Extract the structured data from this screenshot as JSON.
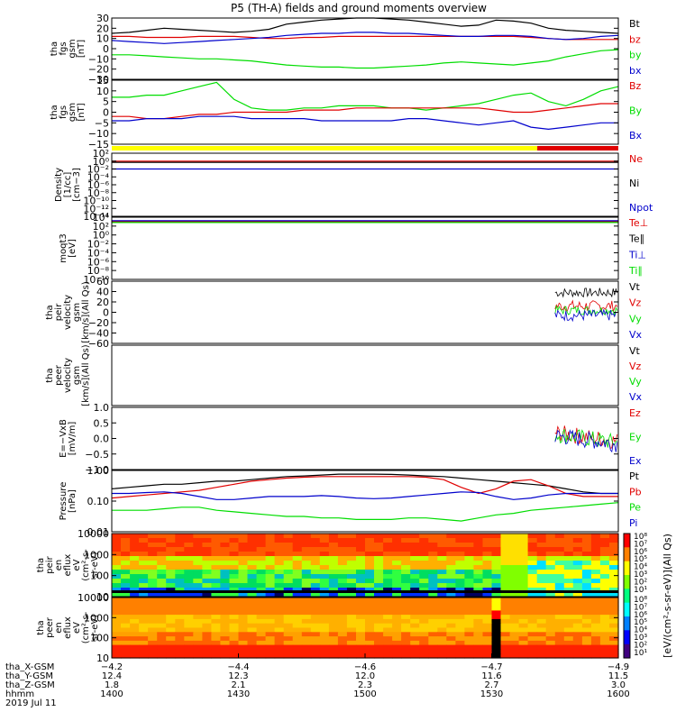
{
  "title": "P5 (TH-A) fields and ground moments overview",
  "colors": {
    "black": "#000000",
    "red": "#e00000",
    "green": "#00dd00",
    "blue": "#0000cc",
    "yellow": "#ffff00"
  },
  "panels": [
    {
      "id": "fgs_gsm",
      "ylabel": [
        "tha",
        "fgs",
        "gsm",
        "[nT]"
      ],
      "ticks": [
        "30",
        "20",
        "10",
        "0",
        "−10",
        "−20",
        "−30"
      ],
      "ymin": -30,
      "ymax": 30,
      "legend": [
        {
          "t": "Bt",
          "c": "black"
        },
        {
          "t": "bz",
          "c": "red"
        },
        {
          "t": "by",
          "c": "green"
        },
        {
          "t": "bx",
          "c": "blue"
        }
      ],
      "series": [
        {
          "c": "black",
          "v": [
            15,
            16,
            18,
            20,
            19,
            18,
            17,
            16,
            17,
            19,
            24,
            26,
            28,
            29,
            30,
            30,
            29,
            28,
            26,
            24,
            22,
            23,
            28,
            27,
            25,
            20,
            18,
            17,
            16,
            15
          ]
        },
        {
          "c": "red",
          "v": [
            12,
            12,
            11,
            11,
            11,
            12,
            12,
            12,
            11,
            10,
            10,
            11,
            11,
            12,
            12,
            12,
            12,
            12,
            12,
            12,
            12,
            12,
            12,
            12,
            11,
            10,
            9,
            9,
            9,
            9
          ]
        },
        {
          "c": "green",
          "v": [
            -6,
            -6,
            -7,
            -8,
            -9,
            -10,
            -10,
            -11,
            -12,
            -14,
            -16,
            -17,
            -18,
            -18,
            -19,
            -19,
            -18,
            -17,
            -16,
            -14,
            -13,
            -14,
            -15,
            -16,
            -14,
            -12,
            -8,
            -5,
            -2,
            -1
          ]
        },
        {
          "c": "blue",
          "v": [
            8,
            7,
            6,
            5,
            6,
            7,
            8,
            9,
            10,
            11,
            13,
            14,
            15,
            15,
            16,
            16,
            15,
            15,
            14,
            13,
            12,
            12,
            13,
            13,
            12,
            10,
            9,
            10,
            12,
            13
          ]
        }
      ]
    },
    {
      "id": "fgs_gse",
      "ylabel": [
        "tha",
        "fgs",
        "gsm",
        "[nT]"
      ],
      "ticks": [
        "15",
        "10",
        "5",
        "0",
        "−5",
        "−10",
        "−15"
      ],
      "ymin": -15,
      "ymax": 15,
      "legend": [
        {
          "t": "Bz",
          "c": "red"
        },
        {
          "t": "By",
          "c": "green"
        },
        {
          "t": "Bx",
          "c": "blue"
        }
      ],
      "series": [
        {
          "c": "green",
          "v": [
            7,
            7,
            8,
            8,
            10,
            12,
            14,
            6,
            2,
            1,
            1,
            2,
            2,
            3,
            3,
            3,
            2,
            2,
            1,
            2,
            3,
            4,
            6,
            8,
            9,
            5,
            3,
            6,
            10,
            12
          ]
        },
        {
          "c": "red",
          "v": [
            -2,
            -2,
            -3,
            -3,
            -2,
            -1,
            -1,
            0,
            0,
            0,
            0,
            1,
            1,
            1,
            2,
            2,
            2,
            2,
            2,
            2,
            2,
            2,
            1,
            0,
            0,
            1,
            2,
            3,
            4,
            4
          ]
        },
        {
          "c": "blue",
          "v": [
            -4,
            -4,
            -3,
            -3,
            -3,
            -2,
            -2,
            -2,
            -3,
            -3,
            -3,
            -3,
            -4,
            -4,
            -4,
            -4,
            -4,
            -3,
            -3,
            -4,
            -5,
            -6,
            -5,
            -4,
            -7,
            -8,
            -7,
            -6,
            -5,
            -5
          ]
        }
      ]
    },
    {
      "id": "density",
      "ylabel": [
        "Density",
        "[1/cc]",
        "[cm−3]"
      ],
      "ticks": [
        "10²",
        "10⁰",
        "10⁻²",
        "10⁻⁴",
        "10⁻⁶",
        "10⁻⁸",
        "10⁻¹⁰",
        "10⁻¹²",
        "10⁻¹⁴"
      ],
      "ymin": -14,
      "ymax": 2,
      "legend": [
        {
          "t": "Ne",
          "c": "red"
        },
        {
          "t": "Ni",
          "c": "black"
        },
        {
          "t": "Npot",
          "c": "blue"
        }
      ],
      "series": [
        {
          "c": "red",
          "v": [
            0,
            0,
            0,
            0,
            0,
            0,
            0,
            0,
            0,
            0,
            0,
            0,
            0,
            0,
            0,
            0,
            0,
            0,
            0,
            0,
            0,
            0,
            0,
            0,
            0,
            0,
            0,
            0,
            0,
            0
          ]
        },
        {
          "c": "black",
          "v": [
            -0.3,
            -0.3,
            -0.3,
            -0.3,
            -0.3,
            -0.3,
            -0.3,
            -0.3,
            -0.3,
            -0.3,
            -0.3,
            -0.3,
            -0.3,
            -0.3,
            -0.3,
            -0.3,
            -0.3,
            -0.3,
            -0.3,
            -0.3,
            -0.3,
            -0.3,
            -0.3,
            -0.3,
            -0.3,
            -0.3,
            -0.3,
            -0.3,
            -0.3,
            -0.3
          ]
        },
        {
          "c": "blue",
          "v": [
            -2,
            -2,
            -2,
            -2,
            -2,
            -2,
            -2,
            -2,
            -2,
            -2,
            -2,
            -2,
            -2,
            -2,
            -2,
            -2,
            -2,
            -2,
            -2,
            -2,
            -2,
            -2,
            -2,
            -2,
            -2,
            -2,
            -2,
            -2,
            -2,
            -2
          ]
        }
      ]
    },
    {
      "id": "moqt",
      "ylabel": [
        "moqt3",
        "[eV]"
      ],
      "ticks": [
        "10⁴",
        "10²",
        "10⁰",
        "10⁻²",
        "10⁻⁴",
        "10⁻⁶",
        "10⁻⁸",
        "10⁻¹⁰"
      ],
      "ymin": -10,
      "ymax": 4,
      "legend": [
        {
          "t": "Te⊥",
          "c": "red"
        },
        {
          "t": "Te∥",
          "c": "black"
        },
        {
          "t": "Ti⊥",
          "c": "blue"
        },
        {
          "t": "Ti∥",
          "c": "green"
        }
      ],
      "series": [
        {
          "c": "red",
          "v": [
            3,
            3,
            3,
            3,
            3,
            3,
            3,
            3,
            3,
            3,
            3,
            3,
            3,
            3,
            3,
            3,
            3,
            3,
            3,
            3,
            3,
            3,
            3,
            3,
            3,
            3,
            3,
            3,
            3,
            3
          ]
        },
        {
          "c": "blue",
          "v": [
            3.2,
            3.2,
            3.2,
            3.2,
            3.2,
            3.2,
            3.2,
            3.2,
            3.2,
            3.2,
            3.2,
            3.2,
            3.2,
            3.2,
            3.2,
            3.2,
            3.2,
            3.2,
            3.2,
            3.2,
            3.2,
            3.2,
            3.2,
            3.2,
            3.2,
            3.2,
            3.2,
            3.2,
            3.2,
            3.2
          ]
        },
        {
          "c": "green",
          "v": [
            2.8,
            2.8,
            2.8,
            2.8,
            2.8,
            2.8,
            2.8,
            2.8,
            2.8,
            2.8,
            2.8,
            2.8,
            2.8,
            2.8,
            2.8,
            2.8,
            2.8,
            2.8,
            2.8,
            2.8,
            2.8,
            2.8,
            2.8,
            2.8,
            2.8,
            2.8,
            2.8,
            2.8,
            2.8,
            2.8
          ]
        }
      ]
    },
    {
      "id": "peir_vel",
      "ylabel": [
        "tha",
        "peir",
        "velocity",
        "gsm",
        "[km/s](All Qs)"
      ],
      "ticks": [
        "60",
        "40",
        "20",
        "0",
        "−20",
        "−40",
        "−60"
      ],
      "ymin": -60,
      "ymax": 60,
      "legend": [
        {
          "t": "Vt",
          "c": "black"
        },
        {
          "t": "Vz",
          "c": "red"
        },
        {
          "t": "Vy",
          "c": "green"
        },
        {
          "t": "Vx",
          "c": "blue"
        }
      ],
      "series": []
    },
    {
      "id": "peer_vel",
      "ylabel": [
        "tha",
        "peer",
        "velocity",
        "gsm",
        "[km/s](All Qs)"
      ],
      "ticks": [],
      "ymin": -60,
      "ymax": 60,
      "legend": [
        {
          "t": "Vt",
          "c": "black"
        },
        {
          "t": "Vz",
          "c": "red"
        },
        {
          "t": "Vy",
          "c": "green"
        },
        {
          "t": "Vx",
          "c": "blue"
        }
      ],
      "series": []
    },
    {
      "id": "efield",
      "ylabel": [
        "E=−VxB",
        "[mV/m]"
      ],
      "ticks": [
        "1.0",
        "0.5",
        "0.0",
        "−0.5",
        "−1.0"
      ],
      "ymin": -1,
      "ymax": 1.2,
      "legend": [
        {
          "t": "Ez",
          "c": "red"
        },
        {
          "t": "Ey",
          "c": "green"
        },
        {
          "t": "Ex",
          "c": "blue"
        }
      ],
      "series": []
    },
    {
      "id": "pressure",
      "ylabel": [
        "Pressure",
        "[nPa]"
      ],
      "ticks": [
        "1.00",
        "0.10",
        "0.01"
      ],
      "ymin": -2,
      "ymax": 0,
      "legend": [
        {
          "t": "Pt",
          "c": "black"
        },
        {
          "t": "Pb",
          "c": "red"
        },
        {
          "t": "Pe",
          "c": "green"
        },
        {
          "t": "Pi",
          "c": "blue"
        }
      ],
      "series": [
        {
          "c": "black",
          "v": [
            -0.6,
            -0.55,
            -0.5,
            -0.45,
            -0.45,
            -0.4,
            -0.35,
            -0.35,
            -0.3,
            -0.25,
            -0.2,
            -0.18,
            -0.15,
            -0.12,
            -0.12,
            -0.12,
            -0.13,
            -0.15,
            -0.18,
            -0.2,
            -0.25,
            -0.3,
            -0.35,
            -0.4,
            -0.45,
            -0.5,
            -0.6,
            -0.7,
            -0.75,
            -0.75
          ]
        },
        {
          "c": "red",
          "v": [
            -0.9,
            -0.85,
            -0.8,
            -0.75,
            -0.7,
            -0.65,
            -0.55,
            -0.45,
            -0.35,
            -0.3,
            -0.25,
            -0.22,
            -0.2,
            -0.2,
            -0.2,
            -0.2,
            -0.2,
            -0.2,
            -0.22,
            -0.3,
            -0.55,
            -0.75,
            -0.6,
            -0.35,
            -0.3,
            -0.5,
            -0.75,
            -0.85,
            -0.85,
            -0.85
          ]
        },
        {
          "c": "blue",
          "v": [
            -0.75,
            -0.75,
            -0.72,
            -0.7,
            -0.75,
            -0.85,
            -0.95,
            -0.95,
            -0.9,
            -0.85,
            -0.85,
            -0.85,
            -0.82,
            -0.85,
            -0.9,
            -0.92,
            -0.9,
            -0.85,
            -0.8,
            -0.75,
            -0.7,
            -0.72,
            -0.85,
            -0.95,
            -0.9,
            -0.8,
            -0.75,
            -0.75,
            -0.75,
            -0.75
          ]
        },
        {
          "c": "green",
          "v": [
            -1.3,
            -1.3,
            -1.3,
            -1.25,
            -1.2,
            -1.2,
            -1.3,
            -1.35,
            -1.4,
            -1.45,
            -1.5,
            -1.5,
            -1.55,
            -1.55,
            -1.6,
            -1.6,
            -1.6,
            -1.55,
            -1.55,
            -1.6,
            -1.65,
            -1.55,
            -1.45,
            -1.4,
            -1.3,
            -1.25,
            -1.2,
            -1.15,
            -1.1,
            -1.05
          ]
        }
      ]
    },
    {
      "id": "peir_en",
      "ylabel": [
        "tha",
        "peir",
        "en",
        "eflux",
        "eV",
        "(cm²-s-",
        "sr-eV)"
      ],
      "ticks": [
        "10000",
        "1000",
        "100",
        "10"
      ],
      "ymin": 0.7,
      "ymax": 4.4,
      "legend": [],
      "series": []
    },
    {
      "id": "peer_en",
      "ylabel": [
        "tha",
        "peer",
        "en",
        "eflux",
        "eV",
        "(cm²-s-",
        "sr-eV)"
      ],
      "ticks": [
        "10000",
        "1000",
        "100",
        "10"
      ],
      "ymin": 0.7,
      "ymax": 4.4,
      "legend": [],
      "series": []
    }
  ],
  "colorbar": {
    "label": "[eV/(cm²-s-sr-eV)](All Qs)",
    "ticks_top": [
      "10⁸",
      "10⁷",
      "10⁶",
      "10⁵",
      "10⁴",
      "10³",
      "10²",
      "10¹"
    ],
    "ticks_bottom": [
      "10⁸",
      "10⁷",
      "10⁶",
      "10⁵",
      "10⁴",
      "10³",
      "10²",
      "10¹"
    ]
  },
  "xaxis": {
    "rows": [
      {
        "label": "tha_X-GSM",
        "values": [
          "−4.2",
          "−4.4",
          "−4.6",
          "−4.7",
          "−4.9"
        ]
      },
      {
        "label": "tha_Y-GSM",
        "values": [
          "12.4",
          "12.3",
          "12.0",
          "11.6",
          "11.5"
        ]
      },
      {
        "label": "tha_Z-GSM",
        "values": [
          "1.8",
          "2.1",
          "2.3",
          "2.7",
          "3.0"
        ]
      },
      {
        "label": "hhmm",
        "values": [
          "1400",
          "1430",
          "1500",
          "1530",
          "1600"
        ]
      }
    ],
    "date": "2019 Jul 11"
  }
}
